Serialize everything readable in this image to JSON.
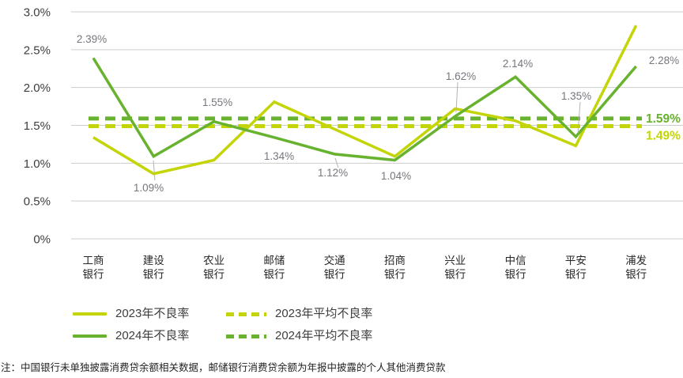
{
  "chart_data": {
    "type": "line",
    "title": "",
    "categories": [
      "工商银行",
      "建设银行",
      "农业银行",
      "邮储银行",
      "交通银行",
      "招商银行",
      "兴业银行",
      "中信银行",
      "平安银行",
      "浦发银行"
    ],
    "series": [
      {
        "name": "2023年不良率",
        "color": "#c3d507",
        "line_style": "solid",
        "values": [
          1.34,
          0.86,
          1.04,
          1.81,
          1.45,
          1.09,
          1.72,
          1.56,
          1.23,
          2.82
        ]
      },
      {
        "name": "2024年不良率",
        "color": "#67b22e",
        "line_style": "solid",
        "values": [
          2.39,
          1.09,
          1.55,
          1.34,
          1.12,
          1.04,
          1.62,
          2.14,
          1.35,
          2.28
        ],
        "point_labels": [
          "2.39%",
          "1.09%",
          "1.55%",
          "1.34%",
          "1.12%",
          "1.04%",
          "1.62%",
          "2.14%",
          "1.35%",
          "2.28%"
        ]
      }
    ],
    "reference_lines": [
      {
        "name": "2023年平均不良率",
        "value": 1.49,
        "label": "1.49%",
        "color": "#c3d507",
        "line_style": "dashed"
      },
      {
        "name": "2024年平均不良率",
        "value": 1.59,
        "label": "1.59%",
        "color": "#67b22e",
        "line_style": "dashed"
      }
    ],
    "y_axis": {
      "ticks": [
        "3.0%",
        "2.5%",
        "2.0%",
        "1.5%",
        "1.0%",
        "0.5%",
        "0%"
      ],
      "tick_values": [
        3.0,
        2.5,
        2.0,
        1.5,
        1.0,
        0.5,
        0
      ],
      "min": 0,
      "max": 3.0,
      "grid": true
    },
    "x_axis": {
      "label_lines": 2
    },
    "legend_position": "bottom-left",
    "data_label_color": "#76767e",
    "grid_color": "#cdcdcd",
    "axis_text_color": "#3d3d3d",
    "category_text_color": "#262626"
  },
  "legend": {
    "items": [
      {
        "label": "2023年不良率",
        "style": "solid",
        "color": "#c3d507"
      },
      {
        "label": "2023年平均不良率",
        "style": "dashed",
        "color": "#c3d507"
      },
      {
        "label": "2024年不良率",
        "style": "solid",
        "color": "#67b22e"
      },
      {
        "label": "2024年平均不良率",
        "style": "dashed",
        "color": "#67b22e"
      }
    ]
  },
  "note": "注：中国银行未单独披露消费贷余额相关数据，邮储银行消费贷余额为年报中披露的个人其他消费贷款"
}
